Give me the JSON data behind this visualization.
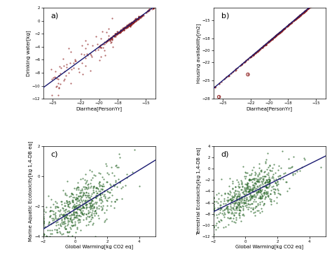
{
  "panel_a": {
    "label": "a)",
    "xlabel": "Diarrhea[PersonYr]",
    "ylabel": "Drinking water[kg]",
    "xlim": [
      -26,
      -14
    ],
    "ylim": [
      -12,
      2
    ],
    "xticks": [
      -25,
      -22,
      -20,
      -18,
      -15
    ],
    "yticks": [
      -12,
      -10,
      -8,
      -6,
      -4,
      -2,
      0,
      2
    ],
    "scatter_color": "#8B1A1A",
    "line_color": "#191970",
    "slope": 1.05,
    "intercept": 17.0,
    "seed": 42
  },
  "panel_b": {
    "label": "b)",
    "xlabel": "Diarrhea[PersonYr]",
    "ylabel": "Housing availability[m2]",
    "xlim": [
      -26,
      -14
    ],
    "ylim": [
      -28,
      -13
    ],
    "xticks": [
      -25,
      -22,
      -20,
      -18,
      -15
    ],
    "yticks": [
      -28,
      -25,
      -22,
      -20,
      -18,
      -15
    ],
    "scatter_color": "#8B1A1A",
    "line_color": "#191970",
    "slope": 1.3,
    "intercept": 7.5,
    "seed": 99
  },
  "panel_c": {
    "label": "c)",
    "xlabel": "Global Warming[kg CO2 eq]",
    "ylabel": "Marine Aquatic Ecotoxicity[kg 1,4-DB eq]",
    "xlim": [
      -2,
      5
    ],
    "ylim": [
      -4,
      2
    ],
    "xticks": [
      -2,
      0,
      2,
      4
    ],
    "yticks": [
      -4,
      -2,
      0,
      2
    ],
    "scatter_color": "#1A5C1A",
    "line_color": "#191970",
    "slope": 0.65,
    "intercept": -2.2,
    "seed": 7
  },
  "panel_d": {
    "label": "d)",
    "xlabel": "Global Warming[kg CO2 eq]",
    "ylabel": "Terrestrial Ecotoxicity[kg 1,4-DB eq]",
    "xlim": [
      -2,
      5
    ],
    "ylim": [
      -12,
      4
    ],
    "xticks": [
      -2,
      0,
      2,
      4
    ],
    "yticks": [
      -12,
      -10,
      -8,
      -6,
      -4,
      -2,
      0,
      2,
      4
    ],
    "scatter_color": "#1A5C1A",
    "line_color": "#191970",
    "slope": 1.4,
    "intercept": -4.8,
    "seed": 13
  },
  "bg_color": "#ffffff",
  "figure_bg": "#ffffff"
}
